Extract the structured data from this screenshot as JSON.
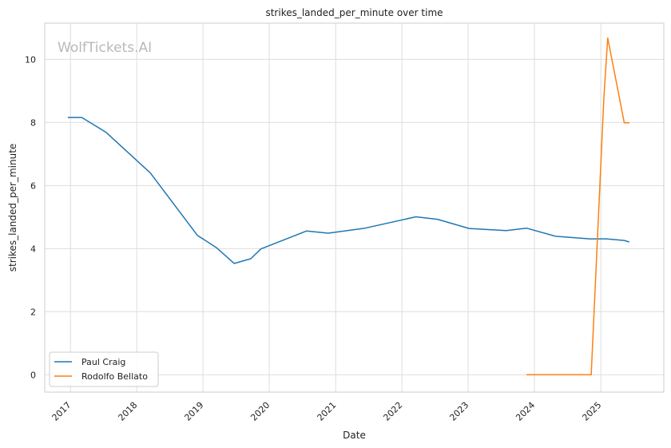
{
  "chart_data": {
    "type": "line",
    "title": "strikes_landed_per_minute over time",
    "xlabel": "Date",
    "ylabel": "strikes_landed_per_minute",
    "watermark": "WolfTickets.AI",
    "x_ticks": [
      "2017",
      "2018",
      "2019",
      "2020",
      "2021",
      "2022",
      "2023",
      "2024",
      "2025"
    ],
    "y_ticks": [
      0,
      2,
      4,
      6,
      8,
      10
    ],
    "xlim": [
      "2016-08-12",
      "2025-12-14"
    ],
    "ylim": [
      -0.55,
      11.15
    ],
    "grid": true,
    "legend_position": "lower-left",
    "series": [
      {
        "name": "Paul Craig",
        "color": "#1f77b4",
        "points": [
          [
            "2016-12-17",
            8.16
          ],
          [
            "2017-03-04",
            8.16
          ],
          [
            "2017-07-15",
            7.69
          ],
          [
            "2018-03-17",
            6.4
          ],
          [
            "2018-12-01",
            4.42
          ],
          [
            "2019-03-16",
            4.03
          ],
          [
            "2019-06-22",
            3.53
          ],
          [
            "2019-09-21",
            3.68
          ],
          [
            "2019-11-16",
            3.99
          ],
          [
            "2020-07-25",
            4.56
          ],
          [
            "2020-11-21",
            4.49
          ],
          [
            "2021-06-12",
            4.65
          ],
          [
            "2022-03-19",
            5.01
          ],
          [
            "2022-07-16",
            4.93
          ],
          [
            "2023-01-07",
            4.64
          ],
          [
            "2023-07-29",
            4.57
          ],
          [
            "2023-11-18",
            4.65
          ],
          [
            "2024-04-27",
            4.39
          ],
          [
            "2024-11-02",
            4.31
          ],
          [
            "2025-02-01",
            4.31
          ],
          [
            "2025-05-10",
            4.26
          ],
          [
            "2025-06-07",
            4.21
          ]
        ]
      },
      {
        "name": "Rodolfo Bellato",
        "color": "#ff7f0e",
        "points": [
          [
            "2023-11-18",
            0.0
          ],
          [
            "2024-11-09",
            0.0
          ],
          [
            "2025-01-18",
            8.8
          ],
          [
            "2025-02-08",
            10.68
          ],
          [
            "2025-05-10",
            7.99
          ],
          [
            "2025-06-07",
            7.99
          ]
        ]
      }
    ]
  }
}
